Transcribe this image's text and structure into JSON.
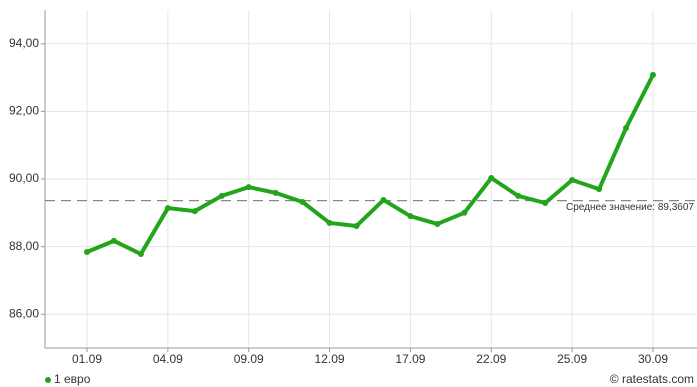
{
  "chart_data": {
    "type": "line",
    "categories": [
      "01.09",
      null,
      null,
      "04.09",
      null,
      null,
      "09.09",
      null,
      null,
      "12.09",
      null,
      null,
      "17.09",
      null,
      null,
      "22.09",
      null,
      null,
      "25.09",
      null,
      null,
      "30.09"
    ],
    "series": [
      {
        "name": "1 евро",
        "color": "#22a51a",
        "values": [
          87.84,
          88.17,
          87.78,
          89.14,
          89.05,
          89.5,
          89.76,
          89.59,
          89.32,
          88.7,
          88.61,
          89.38,
          88.9,
          88.67,
          89.0,
          90.03,
          89.5,
          89.29,
          89.97,
          89.7,
          91.51,
          93.08
        ]
      }
    ],
    "ylim": [
      85,
      95
    ],
    "yticks": [
      {
        "value": 86,
        "label": "86,00"
      },
      {
        "value": 88,
        "label": "88,00"
      },
      {
        "value": 90,
        "label": "90,00"
      },
      {
        "value": 92,
        "label": "92,00"
      },
      {
        "value": 94,
        "label": "94,00"
      }
    ],
    "grid": true,
    "average": 89.3607,
    "average_label": "Среднее значение: 89,3607",
    "credit": "© ratestats.com"
  }
}
